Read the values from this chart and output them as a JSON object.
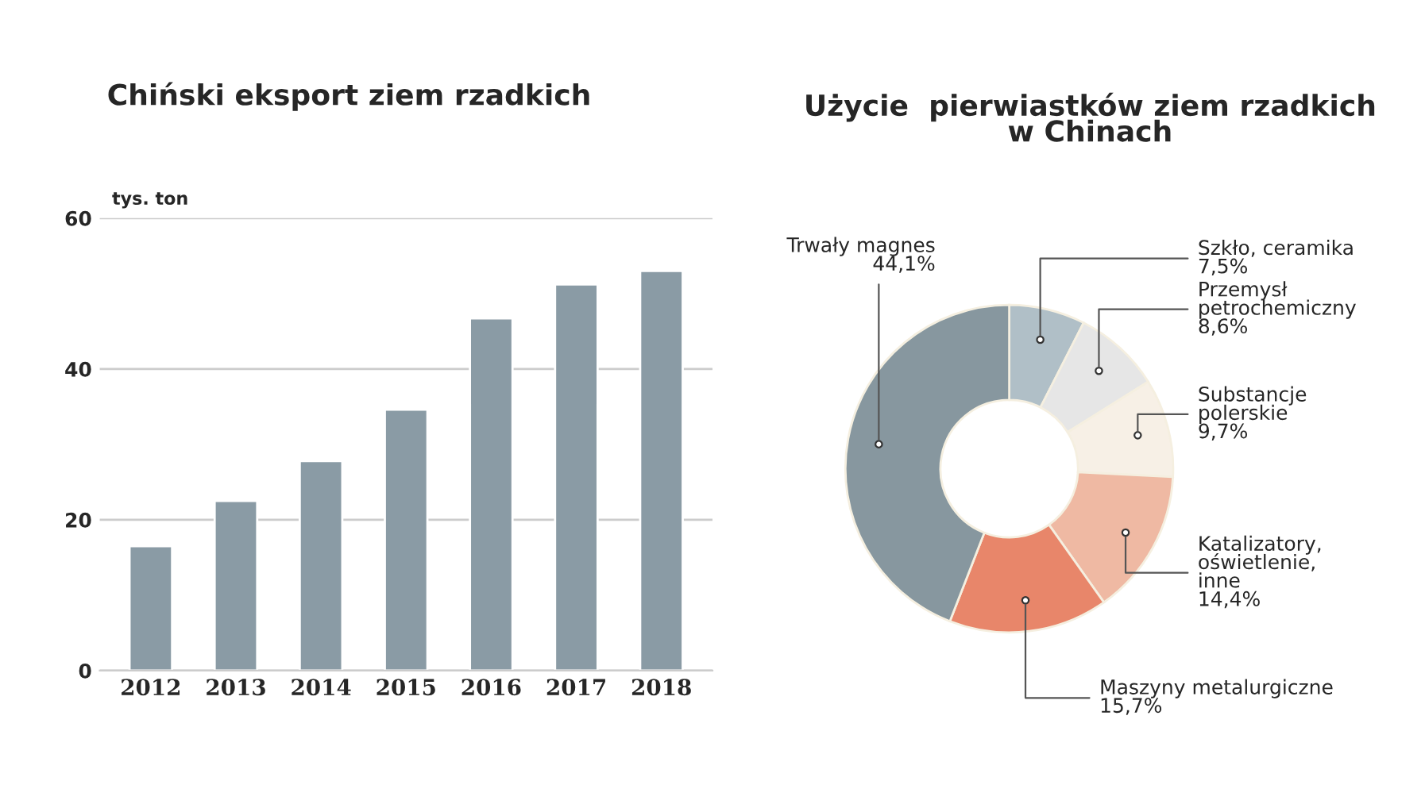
{
  "chart_data": [
    {
      "type": "bar",
      "title": "Chiński eksport ziem rzadkich",
      "ylabel": "tys. ton",
      "categories": [
        "2012",
        "2013",
        "2014",
        "2015",
        "2016",
        "2017",
        "2018"
      ],
      "values": [
        16.5,
        22.5,
        27.8,
        34.6,
        46.7,
        51.2,
        53.0
      ],
      "color": "#8a9ba5",
      "ylim": [
        0,
        60
      ],
      "yticks": [
        0,
        20,
        40,
        60
      ],
      "grid": "y"
    },
    {
      "type": "donut",
      "title": "Użycie  pierwiastków ziem rzadkich\nw Chinach",
      "categories": [
        "Szkło, ceramika",
        "Przemysł\npetrochemiczny",
        "Substancje\npolerskie",
        "Katalizatory,\noświetlenie,\ninne",
        "Maszyny metalurgiczne",
        "Trwały magnes"
      ],
      "values": [
        7.5,
        8.6,
        9.7,
        14.4,
        15.7,
        44.1
      ],
      "value_labels": [
        "7,5%",
        "8,6%",
        "9,7%",
        "14,4%",
        "15,7%",
        "44,1%"
      ],
      "colors": [
        "#b0bfc7",
        "#e6e6e6",
        "#f7f0e6",
        "#efb9a3",
        "#e8866a",
        "#87979f"
      ]
    }
  ]
}
